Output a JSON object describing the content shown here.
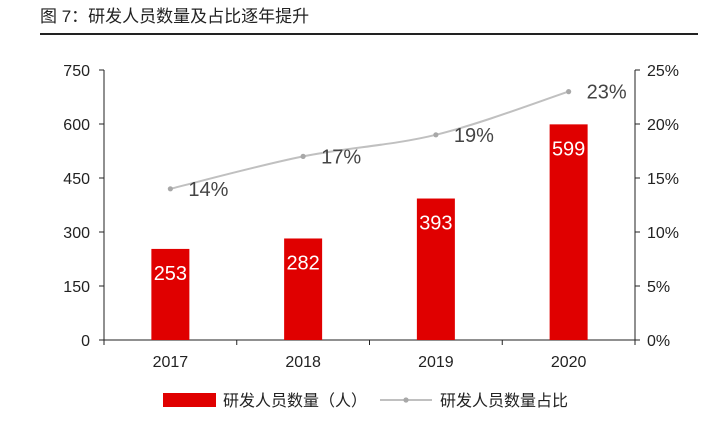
{
  "figure": {
    "title": "图 7：研发人员数量及占比逐年提升"
  },
  "chart_data": {
    "type": "bar",
    "categories": [
      "2017",
      "2018",
      "2019",
      "2020"
    ],
    "series": [
      {
        "name": "研发人员数量（人）",
        "type": "bar",
        "axis": "left",
        "values": [
          253,
          282,
          393,
          599
        ],
        "labels": [
          "253",
          "282",
          "393",
          "599"
        ],
        "color": "#e00000"
      },
      {
        "name": "研发人员数量占比",
        "type": "line",
        "axis": "right",
        "values": [
          14,
          17,
          19,
          23
        ],
        "labels": [
          "14%",
          "17%",
          "19%",
          "23%"
        ],
        "color": "#c0c0c0"
      }
    ],
    "y_left": {
      "ylim": [
        0,
        750
      ],
      "ticks": [
        "0",
        "150",
        "300",
        "450",
        "600",
        "750"
      ]
    },
    "y_right": {
      "ylim": [
        0,
        25
      ],
      "ticks": [
        "0%",
        "5%",
        "10%",
        "15%",
        "20%",
        "25%"
      ]
    },
    "grid": false,
    "legend": "bottom"
  }
}
